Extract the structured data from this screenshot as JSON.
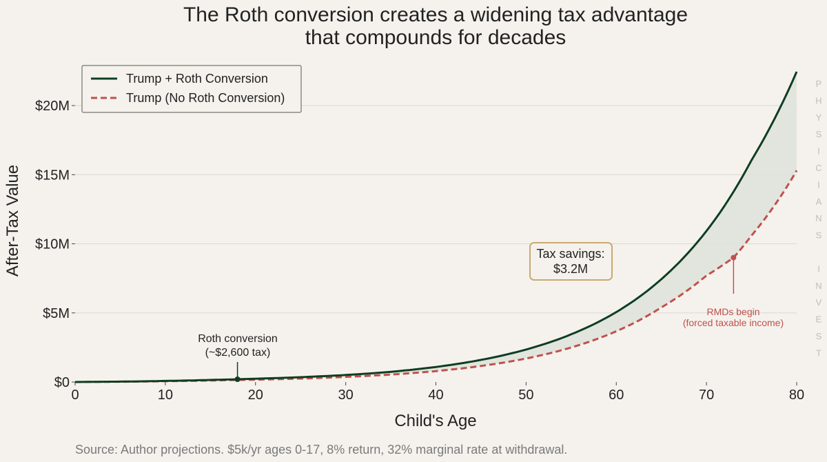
{
  "chart_data": {
    "type": "line",
    "title_lines": [
      "The Roth conversion creates a widening tax advantage",
      "that compounds for decades"
    ],
    "xlabel": "Child's Age",
    "ylabel": "After-Tax Value",
    "xlim": [
      0,
      80
    ],
    "ylim": [
      0,
      22500000
    ],
    "x_ticks": [
      0,
      10,
      20,
      30,
      40,
      50,
      60,
      70,
      80
    ],
    "y_ticks": [
      {
        "value": 0,
        "label": "$0"
      },
      {
        "value": 5000000,
        "label": "$5M"
      },
      {
        "value": 10000000,
        "label": "$10M"
      },
      {
        "value": 15000000,
        "label": "$15M"
      },
      {
        "value": 20000000,
        "label": "$20M"
      }
    ],
    "grid": "horizontal",
    "legend_position": "top-left",
    "series": [
      {
        "name": "Trump + Roth Conversion",
        "color": "#0f3d22",
        "style": "solid",
        "x": [
          0,
          5,
          10,
          15,
          18,
          20,
          25,
          30,
          35,
          40,
          45,
          50,
          55,
          60,
          65,
          70,
          75,
          80
        ],
        "y": [
          0,
          30000,
          80000,
          150000,
          200000,
          240000,
          350000,
          510000,
          740000,
          1090000,
          1600000,
          2350000,
          3450000,
          5060000,
          7440000,
          10930000,
          16060000,
          22450000
        ]
      },
      {
        "name": "Trump (No Roth Conversion)",
        "color": "#c0504d",
        "style": "dashed",
        "x": [
          0,
          5,
          10,
          15,
          18,
          20,
          25,
          30,
          35,
          40,
          45,
          50,
          55,
          60,
          65,
          70,
          73,
          75,
          80
        ],
        "y": [
          0,
          20000,
          60000,
          110000,
          150000,
          170000,
          250000,
          370000,
          540000,
          790000,
          1160000,
          1700000,
          2500000,
          3670000,
          5400000,
          7700000,
          9000000,
          10600000,
          15300000
        ]
      }
    ],
    "annotations": {
      "roth_conversion": {
        "x": 18,
        "y": 200000,
        "lines": [
          "Roth conversion",
          "(~$2,600 tax)"
        ]
      },
      "rmds": {
        "x": 73,
        "y": 9000000,
        "lines": [
          "RMDs begin",
          "(forced taxable income)"
        ],
        "color": "#c0504d"
      },
      "savings_box": {
        "lines": [
          "Tax savings:",
          "$3.2M"
        ],
        "border_color": "#c9a96e"
      }
    },
    "fill_between_color": "#dfe3da",
    "source": "Source: Author projections. $5k/yr ages 0-17, 8% return, 32% marginal rate at withdrawal.",
    "watermark_letters": [
      "P",
      "H",
      "Y",
      "S",
      "I",
      "C",
      "I",
      "A",
      "N",
      "S",
      "",
      "I",
      "N",
      "V",
      "E",
      "S",
      "T"
    ]
  }
}
